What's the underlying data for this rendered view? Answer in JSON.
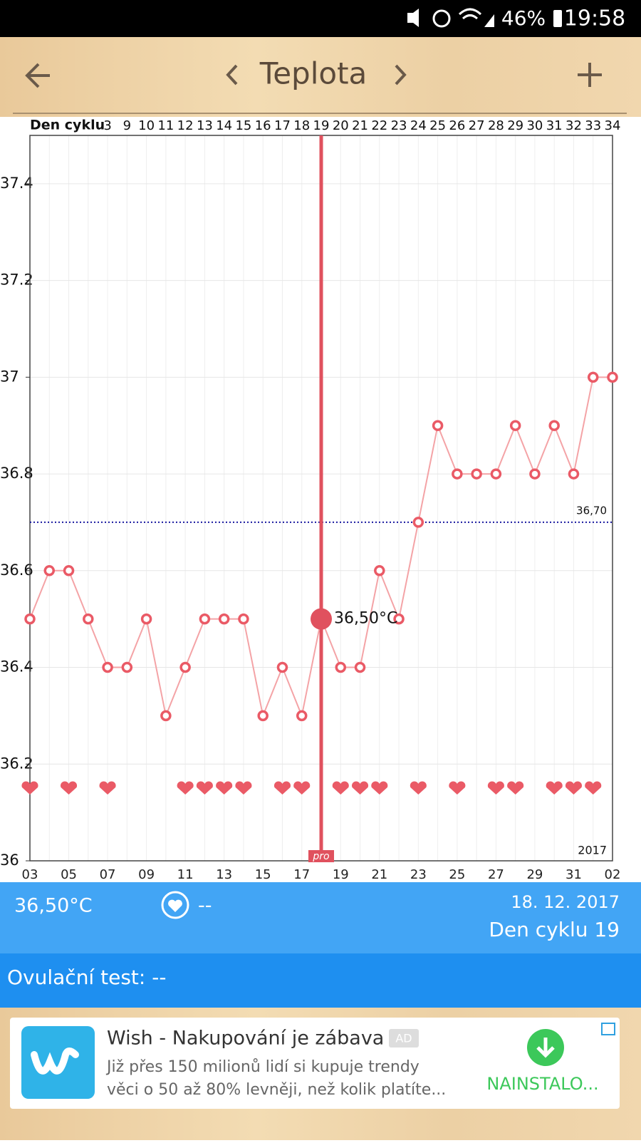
{
  "status_bar": {
    "battery": "46%",
    "time": "19:58"
  },
  "header": {
    "title": "Teplota"
  },
  "chart_data": {
    "type": "line",
    "x_axis_label": "Den cyklu",
    "cycle_days": [
      null,
      null,
      null,
      null,
      "3",
      "9",
      "10",
      "11",
      "12",
      "13",
      "14",
      "15",
      "16",
      "17",
      "18",
      "19",
      "20",
      "21",
      "22",
      "23",
      "24",
      "25",
      "26",
      "27",
      "28",
      "29",
      "30",
      "31",
      "32",
      "33",
      "34"
    ],
    "categories": [
      "03",
      null,
      "05",
      null,
      "07",
      null,
      "09",
      null,
      "11",
      null,
      "13",
      null,
      "15",
      null,
      "17",
      null,
      "19",
      null,
      "21",
      null,
      "23",
      null,
      "25",
      null,
      "27",
      null,
      "29",
      null,
      "31",
      null,
      "02"
    ],
    "values": [
      36.5,
      36.6,
      36.6,
      36.5,
      36.4,
      36.4,
      36.5,
      36.3,
      36.4,
      36.5,
      36.5,
      36.5,
      36.3,
      36.4,
      36.3,
      36.5,
      36.4,
      36.4,
      36.6,
      36.5,
      36.7,
      36.9,
      36.8,
      36.8,
      36.8,
      36.9,
      36.8,
      36.9,
      36.8,
      37,
      37
    ],
    "color": "#f4a3a6",
    "marker_color": "#ea5a66",
    "hearts": [
      true,
      false,
      true,
      false,
      true,
      false,
      false,
      false,
      true,
      true,
      true,
      true,
      false,
      true,
      true,
      false,
      true,
      true,
      true,
      false,
      true,
      false,
      true,
      false,
      true,
      true,
      false,
      true,
      true,
      true,
      false
    ],
    "ylim": [
      36,
      37.5
    ],
    "yticks": [
      36,
      36.2,
      36.4,
      36.6,
      36.8,
      37,
      37.2,
      37.4
    ],
    "grid": true,
    "reference_line": {
      "value": 36.7,
      "label": "36,70",
      "color": "#1a1aa0"
    },
    "cursor_label": "36,50°C",
    "cursor_badge": "pro",
    "year": "2017"
  },
  "info": {
    "temperature": "36,50°C",
    "heart_value": "--",
    "date": "18. 12. 2017",
    "cycle_day": "Den cyklu 19"
  },
  "ovulation": "Ovulační test: --",
  "ad": {
    "title": "Wish - Nakupování je zábava",
    "badge": "AD",
    "line1": "Již přes 150 milionů lidí si kupuje trendy",
    "line2": "věci o 50 až 80% levněji, než kolik platíte...",
    "button": "NAINSTALO..."
  }
}
